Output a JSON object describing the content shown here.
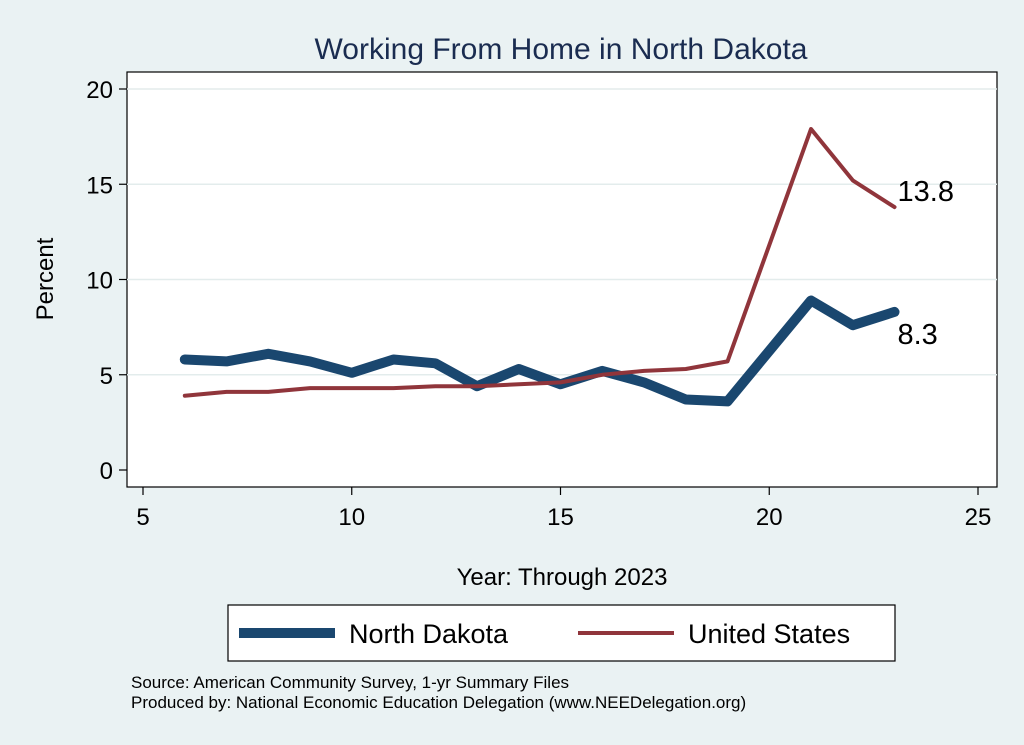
{
  "chart_data": {
    "type": "line",
    "title": "Working From Home in North Dakota",
    "xlabel": "Year: Through 2023",
    "ylabel": "Percent",
    "xlim": [
      5,
      25
    ],
    "ylim": [
      0,
      20
    ],
    "xticks": [
      5,
      10,
      15,
      20,
      25
    ],
    "yticks": [
      0,
      5,
      10,
      15,
      20
    ],
    "grid": "horizontal",
    "legend_position": "bottom",
    "series": [
      {
        "name": "North Dakota",
        "color": "#1a476f",
        "x": [
          6,
          7,
          8,
          9,
          10,
          11,
          12,
          13,
          14,
          15,
          16,
          17,
          18,
          19,
          21,
          22,
          23
        ],
        "values": [
          5.8,
          5.7,
          6.1,
          5.7,
          5.1,
          5.8,
          5.6,
          4.4,
          5.3,
          4.5,
          5.2,
          4.6,
          3.7,
          3.6,
          8.9,
          7.6,
          8.3
        ],
        "end_label": "8.3"
      },
      {
        "name": "United States",
        "color": "#90353b",
        "x": [
          6,
          7,
          8,
          9,
          10,
          11,
          12,
          13,
          14,
          15,
          16,
          17,
          18,
          19,
          21,
          22,
          23
        ],
        "values": [
          3.9,
          4.1,
          4.1,
          4.3,
          4.3,
          4.3,
          4.4,
          4.4,
          4.5,
          4.6,
          5.0,
          5.2,
          5.3,
          5.7,
          17.9,
          15.2,
          13.8
        ],
        "end_label": "13.8"
      }
    ]
  },
  "footer": {
    "source": "Source: American Community Survey, 1-yr Summary Files",
    "produced_by": "Produced by: National Economic Education Delegation (www.NEEDelegation.org)"
  }
}
